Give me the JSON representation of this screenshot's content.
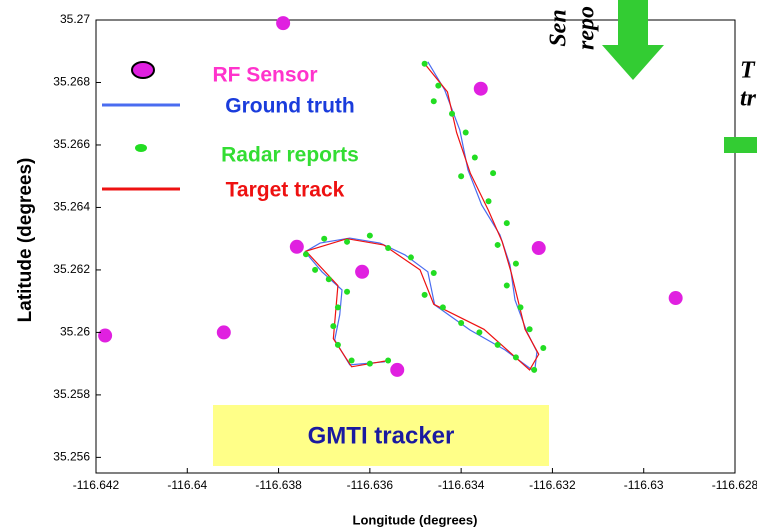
{
  "chart_data": {
    "type": "scatter",
    "xlabel": "Longitude (degrees)",
    "ylabel": "Latitude (degrees)",
    "xlim": [
      -116.642,
      -116.628
    ],
    "xticks": [
      -116.642,
      -116.64,
      -116.638,
      -116.636,
      -116.634,
      -116.632,
      -116.63,
      -116.628
    ],
    "ylim": [
      35.2555,
      35.27
    ],
    "yticks": [
      35.256,
      35.258,
      35.26,
      35.262,
      35.264,
      35.266,
      35.268,
      35.27
    ],
    "annotation": "GMTI tracker",
    "overlay_texts": [
      "Sen",
      "repo",
      "T",
      "tr"
    ],
    "series": [
      {
        "name": "RF Sensor",
        "color": "#e020e0",
        "mode": "marker",
        "x": [
          -116.6379,
          -116.63357,
          -116.6376,
          -116.63617,
          -116.6323,
          -116.6392,
          -116.6418,
          -116.6354,
          -116.6293
        ],
        "values": [
          35.2699,
          35.2678,
          35.26274,
          35.26194,
          35.2627,
          35.26,
          35.2599,
          35.2588,
          35.2611
        ]
      },
      {
        "name": "Ground truth",
        "color": "#4a6cf0",
        "mode": "line",
        "x": [
          -116.63473,
          -116.63436,
          -116.63403,
          -116.63385,
          -116.63355,
          -116.63315,
          -116.63293,
          -116.63282,
          -116.63256,
          -116.63234,
          -116.63239,
          -116.63304,
          -116.63381,
          -116.63458,
          -116.63473,
          -116.63523,
          -116.63578,
          -116.63644,
          -116.63709,
          -116.63742,
          -116.63705,
          -116.63661,
          -116.63666,
          -116.63677,
          -116.63644,
          -116.63567
        ],
        "values": [
          35.26866,
          35.26776,
          35.26648,
          35.2652,
          35.26408,
          35.26312,
          35.26216,
          35.26104,
          35.26002,
          35.25938,
          35.25874,
          35.25944,
          35.26008,
          35.26088,
          35.26194,
          35.26248,
          35.26286,
          35.26302,
          35.26286,
          35.26258,
          35.26194,
          35.26136,
          35.26056,
          35.25976,
          35.25896,
          35.25906
        ]
      },
      {
        "name": "Radar reports",
        "color": "#22dd22",
        "mode": "dot",
        "x": [
          -116.6348,
          -116.6345,
          -116.6342,
          -116.6339,
          -116.6337,
          -116.634,
          -116.6334,
          -116.633,
          -116.6332,
          -116.6328,
          -116.633,
          -116.6327,
          -116.6325,
          -116.6322,
          -116.6324,
          -116.6328,
          -116.6332,
          -116.6336,
          -116.634,
          -116.6344,
          -116.6348,
          -116.6346,
          -116.6351,
          -116.6356,
          -116.636,
          -116.6365,
          -116.637,
          -116.6374,
          -116.6372,
          -116.6369,
          -116.6365,
          -116.6367,
          -116.6368,
          -116.6367,
          -116.6364,
          -116.636,
          -116.6356,
          -116.6333,
          -116.6346
        ],
        "values": [
          35.2686,
          35.2679,
          35.267,
          35.2664,
          35.2656,
          35.265,
          35.2642,
          35.2635,
          35.2628,
          35.2622,
          35.2615,
          35.2608,
          35.2601,
          35.2595,
          35.2588,
          35.2592,
          35.2596,
          35.26,
          35.2603,
          35.2608,
          35.2612,
          35.2619,
          35.2624,
          35.2627,
          35.2631,
          35.2629,
          35.263,
          35.2625,
          35.262,
          35.2617,
          35.2613,
          35.2608,
          35.2602,
          35.2596,
          35.2591,
          35.259,
          35.2591,
          35.2651,
          35.2674
        ]
      },
      {
        "name": "Target track",
        "color": "#ee1111",
        "mode": "line",
        "x": [
          -116.6348,
          -116.6343,
          -116.6341,
          -116.6338,
          -116.6334,
          -116.6331,
          -116.6329,
          -116.6326,
          -116.6323,
          -116.6325,
          -116.6335,
          -116.6346,
          -116.6349,
          -116.6357,
          -116.6365,
          -116.6374,
          -116.6367,
          -116.6368,
          -116.6364,
          -116.6356
        ],
        "values": [
          35.2686,
          35.2677,
          35.2664,
          35.2651,
          35.2639,
          35.2629,
          35.2619,
          35.2601,
          35.2593,
          35.2588,
          35.2601,
          35.2609,
          35.262,
          35.2628,
          35.263,
          35.2626,
          35.2615,
          35.2598,
          35.2589,
          35.2591
        ]
      }
    ]
  }
}
